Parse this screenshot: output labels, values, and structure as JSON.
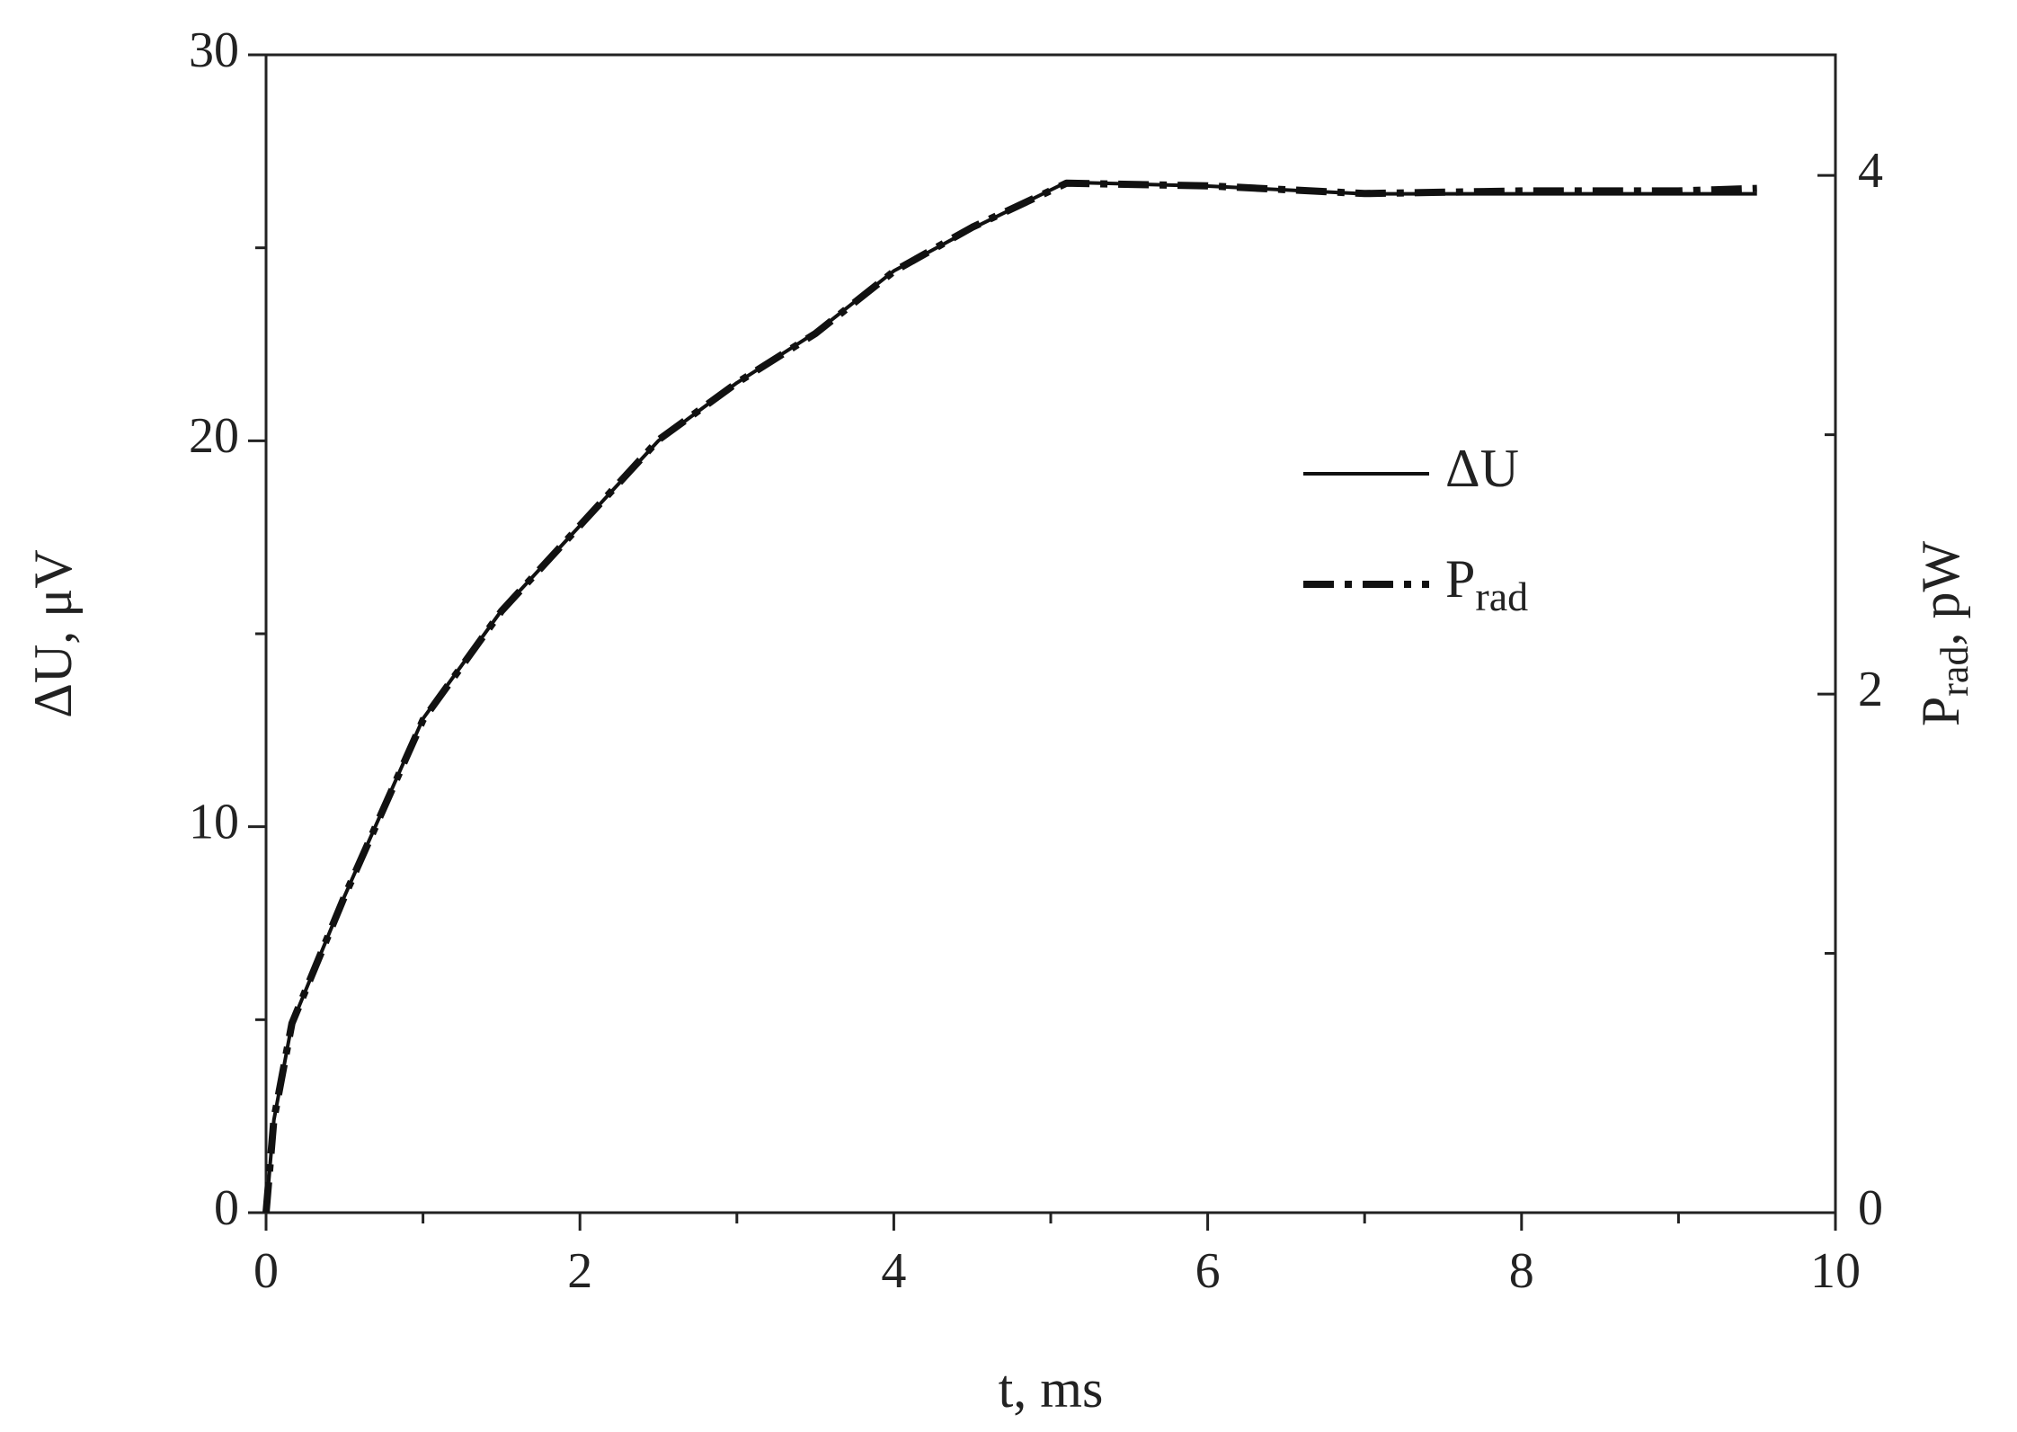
{
  "chart_data": {
    "type": "line",
    "xlabel": "t, ms",
    "ylabel": "ΔU, μV",
    "y2label": {
      "main": "P",
      "sub": "rad",
      "rest": ", pW"
    },
    "x": [
      0,
      0.05,
      0.165,
      0.5,
      1,
      1.5,
      2,
      2.5,
      3,
      3.5,
      4,
      4.5,
      5.1,
      6,
      7,
      8,
      9,
      9.5
    ],
    "series": [
      {
        "name": "ΔU",
        "color": "#111111",
        "style": "solid",
        "values": [
          0,
          2.4,
          4.9,
          8.2,
          12.8,
          15.6,
          17.8,
          20.0,
          21.5,
          22.8,
          24.4,
          25.5,
          26.7,
          26.6,
          26.4,
          26.4,
          26.4,
          26.4
        ]
      },
      {
        "name": "P",
        "name_sub": "rad",
        "color": "#111111",
        "style": "dashdot",
        "axis": "y2",
        "values": [
          0,
          0.36,
          0.73,
          1.22,
          1.9,
          2.32,
          2.65,
          2.98,
          3.2,
          3.39,
          3.63,
          3.8,
          3.97,
          3.96,
          3.93,
          3.94,
          3.94,
          3.95
        ]
      }
    ],
    "xlim": [
      0,
      10
    ],
    "xticks": [
      0,
      2,
      4,
      6,
      8,
      10
    ],
    "xminor": [
      1,
      3,
      5,
      7,
      9
    ],
    "ylim": [
      0,
      30.0
    ],
    "yticks": [
      0,
      10,
      20,
      30
    ],
    "yminor": [
      5,
      15,
      25
    ],
    "y2lim": [
      0,
      4.465
    ],
    "y2ticks": [
      0,
      2,
      4
    ],
    "y2minor": [
      1,
      3
    ],
    "grid": false
  }
}
